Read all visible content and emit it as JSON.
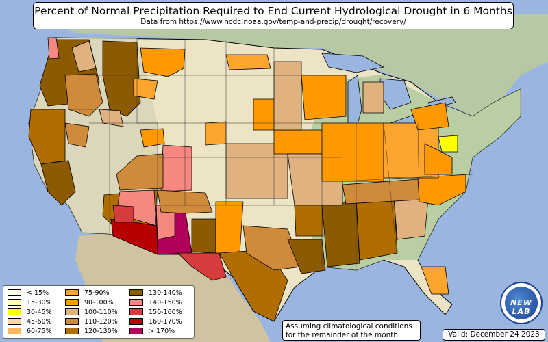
{
  "title": "Percent of Normal Precipitation Required to End Current Hydrological Drought in 6 Months",
  "subtitle": "Data from https://www.ncdc.noaa.gov/temp-and-precip/drought/recovery/",
  "legend": [
    {
      "label": "< 15%",
      "color": "#fffde6"
    },
    {
      "label": "15-30%",
      "color": "#ffffb0"
    },
    {
      "label": "30-45%",
      "color": "#ffff00"
    },
    {
      "label": "45-60%",
      "color": "#fcd6a4"
    },
    {
      "label": "60-75%",
      "color": "#fdb660"
    },
    {
      "label": "75-90%",
      "color": "#fda52c"
    },
    {
      "label": "90-100%",
      "color": "#ff9900"
    },
    {
      "label": "100-110%",
      "color": "#dfb27f"
    },
    {
      "label": "110-120%",
      "color": "#cf8a3c"
    },
    {
      "label": "120-130%",
      "color": "#b06e00"
    },
    {
      "label": "130-140%",
      "color": "#8c5a00"
    },
    {
      "label": "140-150%",
      "color": "#f78880"
    },
    {
      "label": "150-160%",
      "color": "#d63c3c"
    },
    {
      "label": "160-170%",
      "color": "#b80000"
    },
    {
      "label": "> 170%",
      "color": "#b0005a"
    }
  ],
  "note_line1": "Assuming climatological conditions",
  "note_line2": "for the remainder of the month",
  "valid": "Valid: December 24 2023",
  "logo_text": "NEW LAB",
  "colors": {
    "ocean": "#9ab6e0",
    "land_west": "#d6d0b8",
    "land_plains": "#ece4c4",
    "land_east": "#a9c79a",
    "canada": "#b7c9a4",
    "mexico": "#cfc3a0"
  }
}
